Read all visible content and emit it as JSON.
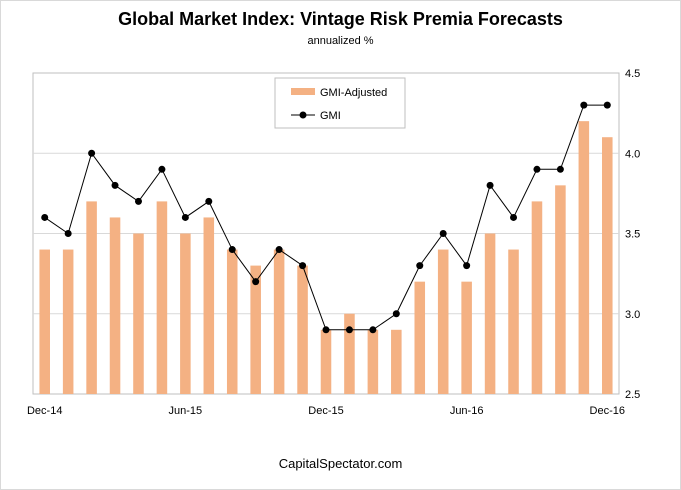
{
  "chart_data": {
    "type": "bar",
    "title": "Global Market Index: Vintage Risk Premia Forecasts",
    "subtitle": "annualized %",
    "source": "CapitalSpectator.com",
    "x_tick_labels": [
      "Dec-14",
      "Jun-15",
      "Dec-15",
      "Jun-16",
      "Dec-16"
    ],
    "x_tick_indices": [
      0,
      6,
      12,
      18,
      24
    ],
    "y_ticks": [
      "2.5",
      "3.0",
      "3.5",
      "4.0",
      "4.5"
    ],
    "ylim": [
      2.5,
      4.5
    ],
    "y_axis_side": "right",
    "grid": true,
    "legend_position": "top-center",
    "series": [
      {
        "name": "GMI-Adjusted",
        "type": "bar",
        "color": "#f4b183",
        "values": [
          3.4,
          3.4,
          3.7,
          3.6,
          3.5,
          3.7,
          3.5,
          3.6,
          3.4,
          3.3,
          3.4,
          3.3,
          2.9,
          3.0,
          2.9,
          2.9,
          3.2,
          3.4,
          3.2,
          3.5,
          3.4,
          3.7,
          3.8,
          4.2,
          4.1
        ]
      },
      {
        "name": "GMI",
        "type": "line",
        "color": "#000000",
        "values": [
          3.6,
          3.5,
          4.0,
          3.8,
          3.7,
          3.9,
          3.6,
          3.7,
          3.4,
          3.2,
          3.4,
          3.3,
          2.9,
          2.9,
          2.9,
          3.0,
          3.3,
          3.5,
          3.3,
          3.8,
          3.6,
          3.9,
          3.9,
          4.3,
          4.3
        ]
      }
    ]
  }
}
